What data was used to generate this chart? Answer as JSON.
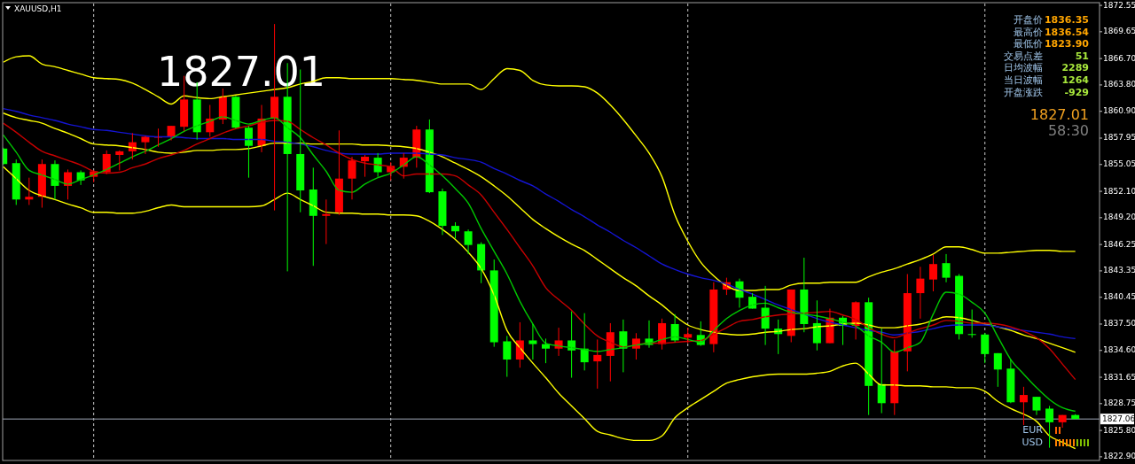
{
  "chart_data": {
    "type": "candlestick",
    "title": "XAUUSD,H1",
    "categories": [
      null,
      null,
      null,
      null,
      null,
      null,
      null,
      null,
      null,
      null,
      null,
      null,
      null,
      null,
      null,
      null,
      null,
      null,
      null,
      null,
      null,
      null,
      null,
      null,
      null,
      null,
      null,
      null,
      null,
      null,
      null,
      null,
      null,
      null,
      null,
      null,
      null,
      null,
      null,
      null,
      null,
      null,
      null,
      null,
      null,
      null,
      null,
      null,
      null,
      null,
      null,
      null,
      null,
      null,
      null,
      null,
      null,
      null,
      null,
      null,
      null,
      null,
      null,
      null,
      null,
      null,
      null,
      null,
      null,
      null,
      null,
      null,
      null,
      null,
      null,
      null,
      null,
      null,
      null,
      null,
      null,
      null,
      null,
      null
    ],
    "ohlc": [
      [
        1856.8,
        1856.9,
        1855.0,
        1855.1
      ],
      [
        1855.2,
        1855.6,
        1850.6,
        1851.2
      ],
      [
        1851.2,
        1853.6,
        1850.6,
        1851.5
      ],
      [
        1851.5,
        1855.6,
        1850.3,
        1855.1
      ],
      [
        1855.1,
        1855.5,
        1851.2,
        1852.7
      ],
      [
        1852.7,
        1854.5,
        1851.2,
        1854.2
      ],
      [
        1854.2,
        1854.4,
        1852.8,
        1853.3
      ],
      [
        1853.7,
        1854.4,
        1853.1,
        1854.3
      ],
      [
        1854.2,
        1856.6,
        1854.0,
        1856.2
      ],
      [
        1856.1,
        1856.6,
        1854.4,
        1856.5
      ],
      [
        1856.5,
        1858.5,
        1855.6,
        1857.5
      ],
      [
        1857.5,
        1858.2,
        1856.2,
        1858.1
      ],
      [
        1858.0,
        1859.0,
        1857.0,
        1858.1
      ],
      [
        1858.1,
        1859.3,
        1857.7,
        1859.3
      ],
      [
        1859.2,
        1864.8,
        1858.7,
        1862.2
      ],
      [
        1862.2,
        1864.1,
        1857.8,
        1858.6
      ],
      [
        1858.6,
        1861.6,
        1858.1,
        1860.1
      ],
      [
        1860.0,
        1863.4,
        1859.5,
        1862.5
      ],
      [
        1862.5,
        1862.6,
        1859.0,
        1859.1
      ],
      [
        1859.1,
        1859.3,
        1853.6,
        1857.1
      ],
      [
        1857.1,
        1861.6,
        1856.4,
        1860.1
      ],
      [
        1860.1,
        1870.5,
        1850.0,
        1862.5
      ],
      [
        1862.5,
        1866.2,
        1843.3,
        1856.2
      ],
      [
        1856.2,
        1865.5,
        1849.8,
        1852.2
      ],
      [
        1852.3,
        1854.7,
        1843.9,
        1849.4
      ],
      [
        1849.4,
        1851.2,
        1846.3,
        1849.6
      ],
      [
        1849.8,
        1858.8,
        1849.5,
        1853.5
      ],
      [
        1853.5,
        1855.9,
        1851.2,
        1855.5
      ],
      [
        1855.4,
        1856.1,
        1853.7,
        1855.9
      ],
      [
        1855.8,
        1856.3,
        1853.7,
        1854.2
      ],
      [
        1854.2,
        1855.3,
        1853.3,
        1854.9
      ],
      [
        1854.8,
        1856.3,
        1853.5,
        1855.8
      ],
      [
        1855.8,
        1859.3,
        1854.7,
        1858.9
      ],
      [
        1858.9,
        1860.0,
        1851.9,
        1852.0
      ],
      [
        1852.1,
        1852.4,
        1847.3,
        1848.3
      ],
      [
        1848.3,
        1848.7,
        1846.9,
        1847.7
      ],
      [
        1847.7,
        1847.9,
        1845.2,
        1846.2
      ],
      [
        1846.3,
        1846.5,
        1842.0,
        1843.4
      ],
      [
        1843.4,
        1844.6,
        1835.0,
        1835.5
      ],
      [
        1835.6,
        1836.2,
        1831.7,
        1833.6
      ],
      [
        1833.6,
        1837.7,
        1832.7,
        1835.7
      ],
      [
        1835.7,
        1837.5,
        1833.6,
        1835.3
      ],
      [
        1835.3,
        1835.9,
        1833.2,
        1834.8
      ],
      [
        1834.8,
        1837.1,
        1834.0,
        1835.7
      ],
      [
        1835.7,
        1838.9,
        1831.6,
        1834.6
      ],
      [
        1834.8,
        1838.7,
        1832.4,
        1833.3
      ],
      [
        1833.4,
        1835.8,
        1830.4,
        1834.1
      ],
      [
        1834.0,
        1837.6,
        1831.2,
        1836.6
      ],
      [
        1836.7,
        1838.0,
        1832.2,
        1834.8
      ],
      [
        1834.8,
        1836.5,
        1833.6,
        1835.9
      ],
      [
        1835.9,
        1837.9,
        1834.9,
        1835.2
      ],
      [
        1835.3,
        1838.1,
        1834.7,
        1837.6
      ],
      [
        1837.5,
        1838.6,
        1835.5,
        1835.7
      ],
      [
        1836.0,
        1837.1,
        1835.4,
        1836.4
      ],
      [
        1836.3,
        1837.8,
        1835.1,
        1835.2
      ],
      [
        1835.3,
        1842.1,
        1834.4,
        1841.3
      ],
      [
        1841.3,
        1842.6,
        1840.7,
        1842.1
      ],
      [
        1842.2,
        1842.5,
        1839.3,
        1840.4
      ],
      [
        1840.5,
        1840.9,
        1839.2,
        1839.2
      ],
      [
        1839.3,
        1841.7,
        1835.2,
        1837.0
      ],
      [
        1837.0,
        1838.0,
        1834.2,
        1836.4
      ],
      [
        1836.2,
        1841.3,
        1835.5,
        1841.3
      ],
      [
        1841.3,
        1844.8,
        1836.6,
        1837.5
      ],
      [
        1837.6,
        1840.1,
        1834.6,
        1835.4
      ],
      [
        1835.4,
        1839.2,
        1835.4,
        1838.2
      ],
      [
        1838.2,
        1838.4,
        1835.2,
        1837.3
      ],
      [
        1837.3,
        1840.0,
        1835.8,
        1839.9
      ],
      [
        1839.9,
        1840.4,
        1827.5,
        1830.7
      ],
      [
        1830.9,
        1837.0,
        1827.7,
        1828.8
      ],
      [
        1828.8,
        1835.8,
        1827.5,
        1834.5
      ],
      [
        1834.5,
        1843.0,
        1832.3,
        1840.9
      ],
      [
        1840.9,
        1843.8,
        1838.1,
        1842.5
      ],
      [
        1842.4,
        1845.1,
        1841.1,
        1844.1
      ],
      [
        1844.2,
        1845.2,
        1842.1,
        1842.6
      ],
      [
        1842.8,
        1843.0,
        1835.8,
        1836.4
      ],
      [
        1836.4,
        1839.1,
        1836.0,
        1836.3
      ],
      [
        1836.35,
        1836.54,
        1833.2,
        1834.2
      ],
      [
        1834.3,
        1834.3,
        1830.6,
        1832.5
      ],
      [
        1832.6,
        1833.6,
        1828.8,
        1828.9
      ],
      [
        1828.9,
        1830.6,
        1826.4,
        1829.7
      ],
      [
        1829.5,
        1829.5,
        1827.5,
        1828.0
      ],
      [
        1828.2,
        1828.5,
        1823.9,
        1826.7
      ],
      [
        1826.7,
        1827.5,
        1826.1,
        1827.5
      ],
      [
        1827.5,
        1827.6,
        1827.06,
        1827.06
      ]
    ],
    "colors": [
      "#00ff00",
      "#00ff00",
      "#ff0000",
      "#ff0000",
      "#00ff00",
      "#ff0000",
      "#00ff00",
      "#ff0000",
      "#ff0000",
      "#ff0000",
      "#ff0000",
      "#ff0000",
      "#ff0000",
      "#ff0000",
      "#ff0000",
      "#00ff00",
      "#ff0000",
      "#ff0000",
      "#00ff00",
      "#00ff00",
      "#ff0000",
      "#ff0000",
      "#00ff00",
      "#00ff00",
      "#00ff00",
      "#ff0000",
      "#ff0000",
      "#ff0000",
      "#ff0000",
      "#00ff00",
      "#ff0000",
      "#ff0000",
      "#ff0000",
      "#00ff00",
      "#00ff00",
      "#00ff00",
      "#00ff00",
      "#00ff00",
      "#00ff00",
      "#00ff00",
      "#ff0000",
      "#00ff00",
      "#00ff00",
      "#ff0000",
      "#00ff00",
      "#00ff00",
      "#ff0000",
      "#ff0000",
      "#00ff00",
      "#ff0000",
      "#00ff00",
      "#ff0000",
      "#00ff00",
      "#ff0000",
      "#00ff00",
      "#ff0000",
      "#ff0000",
      "#00ff00",
      "#00ff00",
      "#00ff00",
      "#00ff00",
      "#ff0000",
      "#00ff00",
      "#00ff00",
      "#ff0000",
      "#00ff00",
      "#ff0000",
      "#00ff00",
      "#00ff00",
      "#ff0000",
      "#ff0000",
      "#ff0000",
      "#ff0000",
      "#00ff00",
      "#00ff00",
      "#00ff00",
      "#00ff00",
      "#00ff00",
      "#00ff00",
      "#ff0000",
      "#00ff00",
      "#00ff00",
      "#ff0000",
      "#00ff00"
    ],
    "series": [
      {
        "type": "line",
        "color": "#ffff00",
        "values": [
          1866.3,
          1866.9,
          1867.0,
          1866.1,
          1865.8,
          1865.4,
          1865.0,
          1864.6,
          1864.5,
          1864.4,
          1864.0,
          1863.3,
          1862.5,
          1861.7,
          1862.6,
          1862.4,
          1862.3,
          1862.5,
          1862.7,
          1862.9,
          1863.1,
          1863.3,
          1863.5,
          1863.9,
          1864.2,
          1864.6,
          1864.6,
          1864.5,
          1864.5,
          1864.5,
          1864.5,
          1864.4,
          1864.3,
          1864.1,
          1863.9,
          1863.9,
          1863.9,
          1863.3,
          1864.5,
          1865.6,
          1865.4,
          1864.3,
          1863.8,
          1863.7,
          1863.7,
          1863.6,
          1862.9,
          1861.6,
          1860.0,
          1858.2,
          1856.3,
          1853.7,
          1849.5,
          1846.6,
          1844.3,
          1842.8,
          1841.7,
          1841.2,
          1841.2,
          1841.3,
          1841.3,
          1841.8,
          1842.0,
          1842.0,
          1842.1,
          1842.1,
          1842.1,
          1842.7,
          1843.2,
          1843.6,
          1844.1,
          1844.6,
          1845.2,
          1846.0,
          1846.0,
          1845.7,
          1845.3,
          1845.3,
          1845.4,
          1845.5,
          1845.6,
          1845.6,
          1845.5,
          1845.5
        ]
      },
      {
        "type": "line",
        "color": "#ffff00",
        "values": [
          1860.7,
          1860.2,
          1859.9,
          1859.6,
          1859.0,
          1858.5,
          1857.9,
          1857.3,
          1857.2,
          1857.1,
          1856.9,
          1856.7,
          1856.4,
          1856.3,
          1856.4,
          1856.6,
          1856.6,
          1856.7,
          1856.7,
          1856.8,
          1857.1,
          1857.4,
          1857.4,
          1857.4,
          1857.3,
          1857.3,
          1857.3,
          1857.3,
          1857.2,
          1857.2,
          1857.1,
          1857.0,
          1856.8,
          1856.4,
          1855.9,
          1855.2,
          1854.5,
          1853.7,
          1852.7,
          1851.6,
          1850.3,
          1849.0,
          1848.0,
          1847.1,
          1846.3,
          1845.6,
          1844.6,
          1843.6,
          1842.6,
          1841.7,
          1840.6,
          1839.6,
          1838.4,
          1837.4,
          1836.9,
          1836.6,
          1836.4,
          1836.3,
          1836.4,
          1836.6,
          1836.7,
          1836.9,
          1837.0,
          1837.2,
          1837.3,
          1837.5,
          1837.6,
          1837.4,
          1837.1,
          1837.1,
          1837.3,
          1837.5,
          1837.9,
          1838.3,
          1838.2,
          1837.9,
          1837.5,
          1837.2,
          1836.8,
          1836.3,
          1835.9,
          1835.4,
          1834.9,
          1834.4
        ]
      },
      {
        "type": "line",
        "color": "#ffff00",
        "values": [
          1854.8,
          1853.5,
          1852.2,
          1851.6,
          1851.2,
          1850.7,
          1850.3,
          1849.8,
          1849.8,
          1849.7,
          1849.7,
          1849.9,
          1850.3,
          1850.6,
          1850.4,
          1850.4,
          1850.4,
          1850.4,
          1850.4,
          1850.4,
          1850.5,
          1851.2,
          1851.9,
          1851.2,
          1850.5,
          1849.8,
          1849.7,
          1849.7,
          1849.6,
          1849.6,
          1849.5,
          1849.5,
          1849.4,
          1848.8,
          1847.9,
          1846.8,
          1845.4,
          1843.6,
          1840.7,
          1836.8,
          1834.9,
          1833.2,
          1831.6,
          1829.9,
          1828.5,
          1827.1,
          1825.7,
          1825.3,
          1824.9,
          1824.7,
          1824.7,
          1825.2,
          1827.2,
          1828.3,
          1829.2,
          1830.1,
          1831.0,
          1831.4,
          1831.7,
          1831.9,
          1832.0,
          1832.0,
          1832.0,
          1832.1,
          1832.3,
          1832.9,
          1833.2,
          1832.0,
          1830.8,
          1830.8,
          1830.7,
          1830.7,
          1830.6,
          1830.6,
          1830.5,
          1830.5,
          1830.1,
          1829.0,
          1828.2,
          1827.6,
          1826.8,
          1825.2,
          1824.5,
          1823.8
        ]
      },
      {
        "type": "line",
        "color": "#1414d2",
        "values": [
          1861.2,
          1860.9,
          1860.5,
          1860.2,
          1859.9,
          1859.5,
          1859.2,
          1858.9,
          1858.8,
          1858.6,
          1858.4,
          1858.2,
          1858.1,
          1858.1,
          1858.0,
          1857.9,
          1857.9,
          1857.9,
          1857.8,
          1857.8,
          1857.8,
          1857.6,
          1857.5,
          1857.3,
          1857.0,
          1856.6,
          1856.3,
          1856.2,
          1856.2,
          1856.2,
          1856.3,
          1856.3,
          1856.3,
          1856.2,
          1856.1,
          1855.8,
          1855.6,
          1855.3,
          1854.6,
          1854.0,
          1853.3,
          1852.7,
          1851.8,
          1851.0,
          1850.1,
          1849.3,
          1848.4,
          1847.6,
          1846.7,
          1845.9,
          1845.0,
          1844.1,
          1843.5,
          1843.0,
          1842.6,
          1842.3,
          1841.9,
          1841.3,
          1840.8,
          1840.2,
          1839.6,
          1839.1,
          1838.6,
          1838.1,
          1837.7,
          1837.4,
          1837.1,
          1836.8,
          1836.6,
          1836.3,
          1836.5,
          1836.7,
          1837.0,
          1837.3,
          1837.4,
          1837.4,
          1837.4,
          1837.2,
          1837.0,
          1836.8,
          1836.6,
          1836.4,
          1836.1,
          1835.9
        ]
      },
      {
        "type": "line",
        "color": "#c80000",
        "values": [
          1859.6,
          1858.6,
          1857.5,
          1856.5,
          1856.0,
          1855.5,
          1855.0,
          1854.3,
          1854.1,
          1854.2,
          1854.7,
          1855.1,
          1855.7,
          1856.1,
          1856.6,
          1857.3,
          1857.9,
          1858.5,
          1859.0,
          1859.3,
          1859.7,
          1859.9,
          1859.8,
          1858.9,
          1858.0,
          1857.2,
          1856.3,
          1855.6,
          1855.2,
          1855.0,
          1854.8,
          1853.8,
          1854.0,
          1854.0,
          1854.0,
          1853.8,
          1852.8,
          1851.7,
          1849.8,
          1847.9,
          1845.9,
          1843.9,
          1841.5,
          1840.2,
          1839.0,
          1837.5,
          1836.2,
          1835.5,
          1835.0,
          1835.2,
          1835.4,
          1835.4,
          1835.5,
          1835.6,
          1835.7,
          1836.4,
          1837.1,
          1837.8,
          1838.0,
          1838.3,
          1838.5,
          1838.6,
          1838.7,
          1838.8,
          1838.9,
          1838.5,
          1838.0,
          1837.1,
          1836.4,
          1836.0,
          1836.5,
          1837.0,
          1837.4,
          1837.9,
          1837.8,
          1837.6,
          1837.6,
          1837.5,
          1837.2,
          1836.7,
          1836.0,
          1834.8,
          1833.1,
          1831.4
        ]
      },
      {
        "type": "line",
        "color": "#00c800",
        "values": [
          1858.3,
          1856.4,
          1854.4,
          1853.9,
          1853.4,
          1852.9,
          1853.4,
          1853.9,
          1854.5,
          1855.2,
          1855.9,
          1856.5,
          1857.2,
          1857.9,
          1858.7,
          1859.3,
          1859.8,
          1860.3,
          1859.9,
          1859.5,
          1859.9,
          1860.2,
          1859.1,
          1858.0,
          1856.1,
          1854.3,
          1852.2,
          1852.0,
          1852.9,
          1853.6,
          1854.1,
          1855.0,
          1855.9,
          1855.0,
          1853.8,
          1852.4,
          1850.8,
          1848.0,
          1845.5,
          1843.0,
          1840.0,
          1837.5,
          1835.4,
          1835.1,
          1834.9,
          1834.7,
          1834.5,
          1834.7,
          1834.9,
          1835.2,
          1835.4,
          1835.8,
          1836.1,
          1835.8,
          1835.5,
          1836.8,
          1838.1,
          1839.0,
          1839.6,
          1839.8,
          1839.3,
          1838.8,
          1838.6,
          1838.4,
          1838.1,
          1837.7,
          1837.3,
          1836.2,
          1835.5,
          1834.4,
          1834.9,
          1835.5,
          1838.6,
          1841.0,
          1840.8,
          1839.9,
          1838.7,
          1836.1,
          1833.6,
          1832.0,
          1830.5,
          1829.2,
          1828.3,
          1827.9
        ]
      }
    ],
    "ylim": [
      1822.5,
      1872.85
    ],
    "yticks": [
      1872.55,
      1869.65,
      {
        "value": 1866.7,
        "label": "1866.70"
      },
      {
        "value": 1863.8,
        "label": "1863.80"
      },
      {
        "value": 1860.9,
        "label": "1860.90"
      },
      1857.95,
      1855.05,
      {
        "value": 1852.1,
        "label": "1852.10"
      },
      {
        "value": 1849.2,
        "label": "1849.20"
      },
      1846.25,
      1843.35,
      1840.45,
      {
        "value": 1837.5,
        "label": "1837.50"
      },
      {
        "value": 1834.6,
        "label": "1834.60"
      },
      1831.65,
      1828.75,
      {
        "value": 1825.8,
        "label": "1825.80"
      },
      {
        "value": 1822.9,
        "label": "1822.90"
      }
    ],
    "tick_labels": "y",
    "grid": "x",
    "ref_lines": [
      {
        "axis": "y",
        "value": 1827.06,
        "label": "1827.06",
        "color": "#a0a8b8"
      }
    ],
    "annotations": [
      "1827.01",
      "开盘价 1836.35",
      "最高价 1836.54",
      "最低价 1823.90",
      "交易点差 51",
      "日均波幅 2289",
      "当日波幅 1264",
      "开盘涨跌 -929",
      "1827.01",
      "58:30",
      "EUR",
      "USD"
    ]
  }
}
